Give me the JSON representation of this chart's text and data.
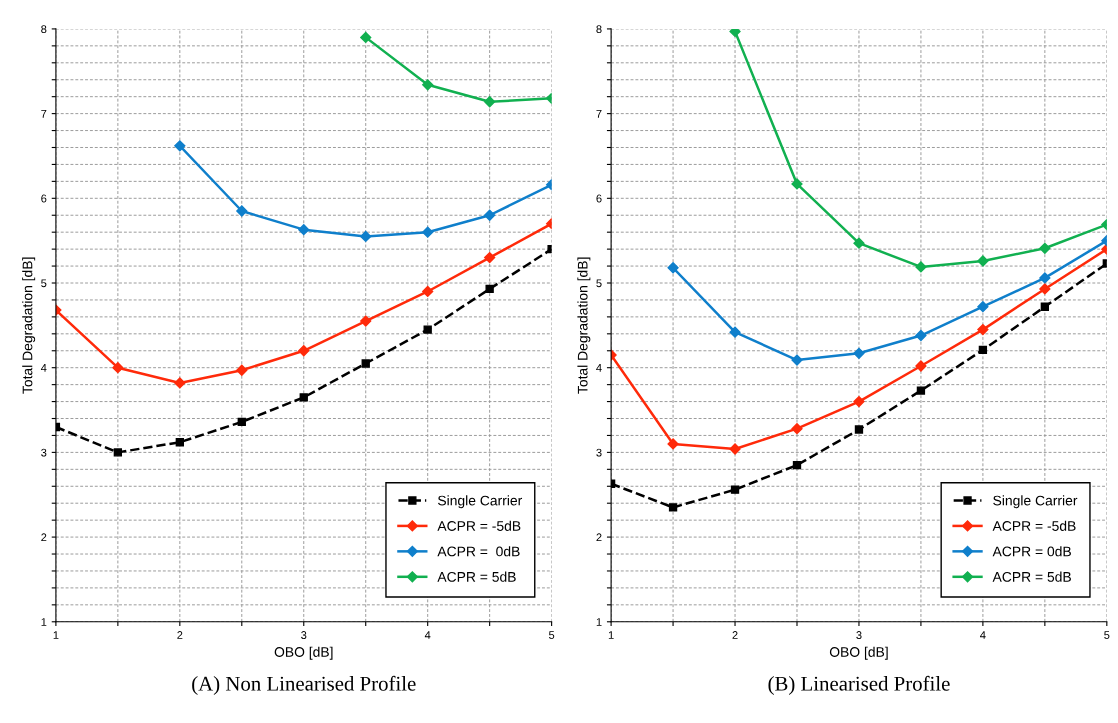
{
  "chart_data": [
    {
      "type": "line",
      "title": "(A) Non Linearised Profile",
      "xlabel": "OBO [dB]",
      "ylabel": "Total Degradation [dB]",
      "x": [
        1,
        1.5,
        2,
        2.5,
        3,
        3.5,
        4,
        4.5,
        5
      ],
      "xlim": [
        1,
        5
      ],
      "ylim": [
        1,
        8
      ],
      "xticks": [
        1,
        {
          "value": 1.5,
          "label": null
        },
        2,
        {
          "value": 2.5,
          "label": null
        },
        3,
        {
          "value": 3.5,
          "label": null
        },
        4,
        {
          "value": 4.5,
          "label": null
        },
        5
      ],
      "yticks": [
        1,
        {
          "value": 1.2,
          "label": null
        },
        {
          "value": 1.4,
          "label": null
        },
        {
          "value": 1.6,
          "label": null
        },
        {
          "value": 1.8,
          "label": null
        },
        2,
        {
          "value": 2.2,
          "label": null
        },
        {
          "value": 2.4,
          "label": null
        },
        {
          "value": 2.6,
          "label": null
        },
        {
          "value": 2.8,
          "label": null
        },
        3,
        {
          "value": 3.2,
          "label": null
        },
        {
          "value": 3.4,
          "label": null
        },
        {
          "value": 3.6,
          "label": null
        },
        {
          "value": 3.8,
          "label": null
        },
        4,
        {
          "value": 4.2,
          "label": null
        },
        {
          "value": 4.4,
          "label": null
        },
        {
          "value": 4.6,
          "label": null
        },
        {
          "value": 4.8,
          "label": null
        },
        5,
        {
          "value": 5.2,
          "label": null
        },
        {
          "value": 5.4,
          "label": null
        },
        {
          "value": 5.6,
          "label": null
        },
        {
          "value": 5.8,
          "label": null
        },
        6,
        {
          "value": 6.2,
          "label": null
        },
        {
          "value": 6.4,
          "label": null
        },
        {
          "value": 6.6,
          "label": null
        },
        {
          "value": 6.8,
          "label": null
        },
        7,
        {
          "value": 7.2,
          "label": null
        },
        {
          "value": 7.4,
          "label": null
        },
        {
          "value": 7.6,
          "label": null
        },
        {
          "value": 7.8,
          "label": null
        },
        8
      ],
      "grid": true,
      "legend": "bottom right",
      "series": [
        {
          "name": "Single Carrier",
          "color": "#000000",
          "line_style": "dashed",
          "marker": "square",
          "values": [
            3.3,
            3.0,
            3.12,
            3.36,
            3.65,
            4.05,
            4.45,
            4.93,
            5.4
          ]
        },
        {
          "name": "ACPR = -5dB",
          "color": "#ff2a0a",
          "line_style": "solid",
          "marker": "diamond",
          "values": [
            4.68,
            4.0,
            3.82,
            3.97,
            4.2,
            4.55,
            4.9,
            5.3,
            5.7
          ]
        },
        {
          "name": "ACPR =  0dB",
          "color": "#0f7fcb",
          "line_style": "solid",
          "marker": "diamond",
          "values": [
            null,
            null,
            6.62,
            5.85,
            5.63,
            5.55,
            5.6,
            5.8,
            6.16
          ]
        },
        {
          "name": "ACPR = 5dB",
          "color": "#11b050",
          "line_style": "solid",
          "marker": "diamond",
          "values": [
            null,
            null,
            null,
            null,
            null,
            7.9,
            7.34,
            7.14,
            7.18
          ]
        }
      ]
    },
    {
      "type": "line",
      "title": "(B) Linearised Profile",
      "xlabel": "OBO [dB]",
      "ylabel": "Total Degradation [dB]",
      "x": [
        1,
        1.5,
        2,
        2.5,
        3,
        3.5,
        4,
        4.5,
        5
      ],
      "xlim": [
        1,
        5
      ],
      "ylim": [
        1,
        8
      ],
      "xticks": [
        1,
        {
          "value": 1.5,
          "label": null
        },
        2,
        {
          "value": 2.5,
          "label": null
        },
        3,
        {
          "value": 3.5,
          "label": null
        },
        4,
        {
          "value": 4.5,
          "label": null
        },
        5
      ],
      "yticks": [
        1,
        {
          "value": 1.2,
          "label": null
        },
        {
          "value": 1.4,
          "label": null
        },
        {
          "value": 1.6,
          "label": null
        },
        {
          "value": 1.8,
          "label": null
        },
        2,
        {
          "value": 2.2,
          "label": null
        },
        {
          "value": 2.4,
          "label": null
        },
        {
          "value": 2.6,
          "label": null
        },
        {
          "value": 2.8,
          "label": null
        },
        3,
        {
          "value": 3.2,
          "label": null
        },
        {
          "value": 3.4,
          "label": null
        },
        {
          "value": 3.6,
          "label": null
        },
        {
          "value": 3.8,
          "label": null
        },
        4,
        {
          "value": 4.2,
          "label": null
        },
        {
          "value": 4.4,
          "label": null
        },
        {
          "value": 4.6,
          "label": null
        },
        {
          "value": 4.8,
          "label": null
        },
        5,
        {
          "value": 5.2,
          "label": null
        },
        {
          "value": 5.4,
          "label": null
        },
        {
          "value": 5.6,
          "label": null
        },
        {
          "value": 5.8,
          "label": null
        },
        6,
        {
          "value": 6.2,
          "label": null
        },
        {
          "value": 6.4,
          "label": null
        },
        {
          "value": 6.6,
          "label": null
        },
        {
          "value": 6.8,
          "label": null
        },
        7,
        {
          "value": 7.2,
          "label": null
        },
        {
          "value": 7.4,
          "label": null
        },
        {
          "value": 7.6,
          "label": null
        },
        {
          "value": 7.8,
          "label": null
        },
        8
      ],
      "grid": true,
      "legend": "bottom right",
      "series": [
        {
          "name": "Single Carrier",
          "color": "#000000",
          "line_style": "dashed",
          "marker": "square",
          "values": [
            2.63,
            2.35,
            2.56,
            2.85,
            3.27,
            3.73,
            4.21,
            4.72,
            5.23
          ]
        },
        {
          "name": "ACPR = -5dB",
          "color": "#ff2a0a",
          "line_style": "solid",
          "marker": "diamond",
          "values": [
            4.15,
            3.1,
            3.04,
            3.28,
            3.6,
            4.02,
            4.45,
            4.93,
            5.4
          ]
        },
        {
          "name": "ACPR = 0dB",
          "color": "#0f7fcb",
          "line_style": "solid",
          "marker": "diamond",
          "values": [
            null,
            5.18,
            4.42,
            4.09,
            4.17,
            4.38,
            4.72,
            5.06,
            5.5
          ]
        },
        {
          "name": "ACPR = 5dB",
          "color": "#11b050",
          "line_style": "solid",
          "marker": "diamond",
          "values": [
            null,
            null,
            7.97,
            6.17,
            5.47,
            5.19,
            5.26,
            5.41,
            5.69
          ]
        }
      ]
    }
  ]
}
